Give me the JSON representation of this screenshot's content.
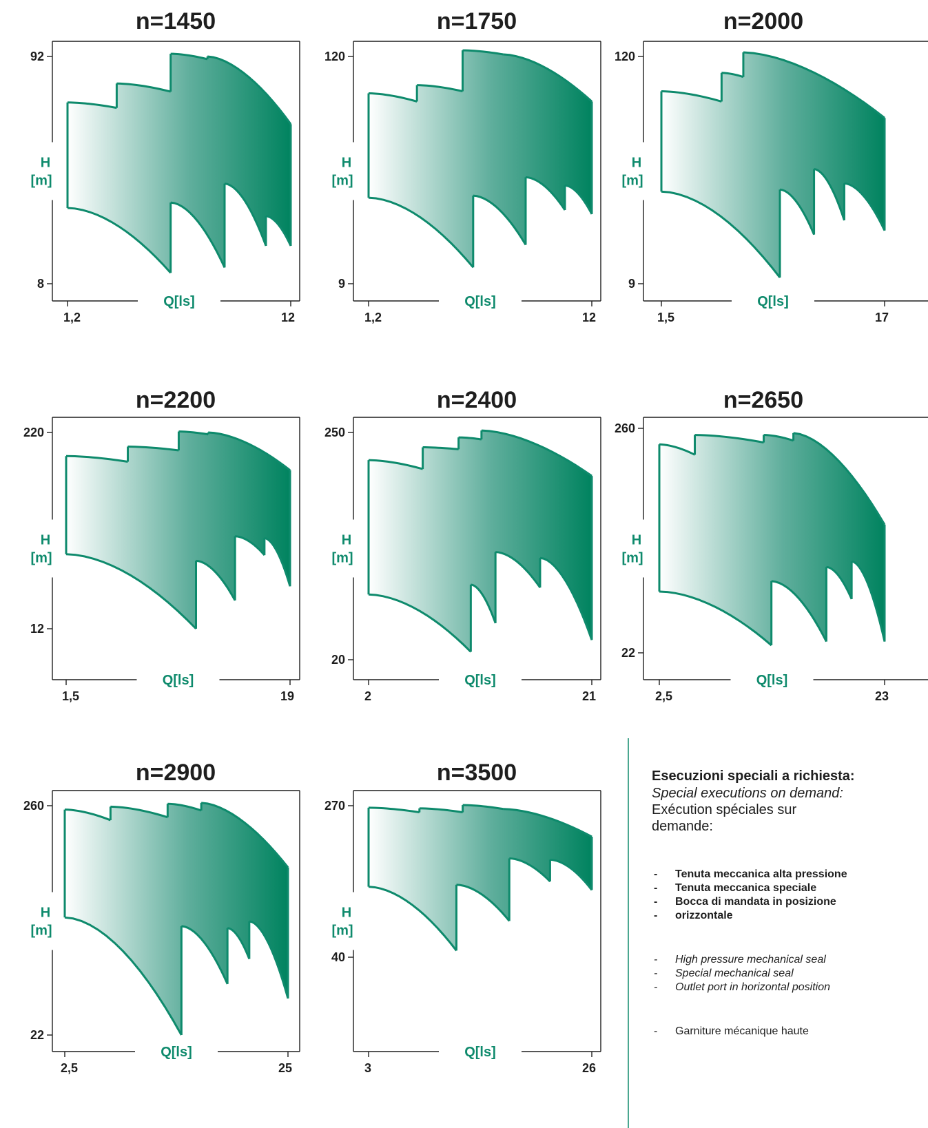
{
  "colors": {
    "curve_stroke": "#0e8a6c",
    "fill_start": "#ffffff",
    "fill_mid": "#5fae9c",
    "fill_end": "#00835f",
    "axis_label": "#0e8a6c",
    "text": "#1e1e1e",
    "divider": "#0e8a6c"
  },
  "chart_data": [
    {
      "type": "area",
      "title": "n=1450",
      "xlabel": "Q[ls]",
      "ylabel": [
        "H",
        "[m]"
      ],
      "x_ticks": [
        "1,2",
        "12"
      ],
      "y_ticks": [
        "92",
        "8"
      ],
      "xlim": [
        1.2,
        12
      ],
      "ylim": [
        8,
        92
      ],
      "grid": false,
      "upper_curves": [
        {
          "q": [
            1.2,
            3.58
          ],
          "h": [
            75,
            73
          ]
        },
        {
          "q": [
            3.58,
            6.19
          ],
          "h": [
            82,
            79
          ]
        },
        {
          "q": [
            6.19,
            7.97
          ],
          "h": [
            93,
            91
          ]
        },
        {
          "q": [
            7.97,
            12
          ],
          "h": [
            92,
            67
          ]
        }
      ],
      "lower_curves": [
        {
          "q": [
            1.2,
            6.19
          ],
          "h": [
            36,
            12
          ]
        },
        {
          "q": [
            6.19,
            8.8
          ],
          "h": [
            38,
            14
          ]
        },
        {
          "q": [
            8.8,
            10.8
          ],
          "h": [
            45,
            22
          ]
        },
        {
          "q": [
            10.8,
            12
          ],
          "h": [
            33,
            22
          ]
        }
      ]
    },
    {
      "type": "area",
      "title": "n=1750",
      "xlabel": "Q[ls]",
      "ylabel": [
        "H",
        "[m]"
      ],
      "x_ticks": [
        "1,2",
        "12"
      ],
      "y_ticks": [
        "120",
        "9"
      ],
      "xlim": [
        1.2,
        12
      ],
      "ylim": [
        9,
        120
      ],
      "grid": false,
      "upper_curves": [
        {
          "q": [
            1.2,
            3.54
          ],
          "h": [
            102,
            98
          ]
        },
        {
          "q": [
            3.54,
            5.75
          ],
          "h": [
            106,
            103
          ]
        },
        {
          "q": [
            5.75,
            7.72
          ],
          "h": [
            123,
            121
          ]
        },
        {
          "q": [
            7.72,
            12
          ],
          "h": [
            121,
            98
          ]
        }
      ],
      "lower_curves": [
        {
          "q": [
            1.2,
            6.26
          ],
          "h": [
            51,
            17
          ]
        },
        {
          "q": [
            6.26,
            8.8
          ],
          "h": [
            52,
            28
          ]
        },
        {
          "q": [
            8.8,
            10.7
          ],
          "h": [
            61,
            45
          ]
        },
        {
          "q": [
            10.7,
            12
          ],
          "h": [
            57,
            43
          ]
        }
      ]
    },
    {
      "type": "area",
      "title": "n=2000",
      "xlabel": "Q[ls]",
      "ylabel": [
        "H",
        "[m]"
      ],
      "x_ticks": [
        "1,5",
        "17"
      ],
      "y_ticks": [
        "120",
        "9"
      ],
      "xlim": [
        1.5,
        17
      ],
      "ylim": [
        9,
        120
      ],
      "grid": false,
      "upper_curves": [
        {
          "q": [
            1.5,
            5.68
          ],
          "h": [
            103,
            98
          ]
        },
        {
          "q": [
            5.68,
            7.19
          ],
          "h": [
            112,
            110
          ]
        },
        {
          "q": [
            7.19,
            17
          ],
          "h": [
            122,
            90
          ]
        }
      ],
      "lower_curves": [
        {
          "q": [
            1.5,
            9.73
          ],
          "h": [
            54,
            12
          ]
        },
        {
          "q": [
            9.73,
            12.1
          ],
          "h": [
            55,
            33
          ]
        },
        {
          "q": [
            12.1,
            14.2
          ],
          "h": [
            65,
            40
          ]
        },
        {
          "q": [
            14.2,
            17
          ],
          "h": [
            58,
            35
          ]
        }
      ]
    },
    {
      "type": "area",
      "title": "n=2200",
      "xlabel": "Q[ls]",
      "ylabel": [
        "H",
        "[m]"
      ],
      "x_ticks": [
        "1,5",
        "19"
      ],
      "y_ticks": [
        "220",
        "12"
      ],
      "xlim": [
        1.5,
        19
      ],
      "ylim": [
        12,
        220
      ],
      "grid": false,
      "upper_curves": [
        {
          "q": [
            1.5,
            6.32
          ],
          "h": [
            195,
            189
          ]
        },
        {
          "q": [
            6.32,
            10.3
          ],
          "h": [
            205,
            201
          ]
        },
        {
          "q": [
            10.3,
            12.6
          ],
          "h": [
            221,
            218
          ]
        },
        {
          "q": [
            12.6,
            19
          ],
          "h": [
            220,
            180
          ]
        }
      ],
      "lower_curves": [
        {
          "q": [
            1.5,
            11.65
          ],
          "h": [
            91,
            12
          ]
        },
        {
          "q": [
            11.65,
            14.7
          ],
          "h": [
            84,
            42
          ]
        },
        {
          "q": [
            14.7,
            17
          ],
          "h": [
            110,
            90
          ]
        },
        {
          "q": [
            17,
            19
          ],
          "h": [
            108,
            57
          ]
        }
      ]
    },
    {
      "type": "area",
      "title": "n=2400",
      "xlabel": "Q[ls]",
      "ylabel": [
        "H",
        "[m]"
      ],
      "x_ticks": [
        "2",
        "21"
      ],
      "y_ticks": [
        "250",
        "20"
      ],
      "xlim": [
        2,
        21
      ],
      "ylim": [
        20,
        250
      ],
      "grid": false,
      "upper_curves": [
        {
          "q": [
            2,
            6.61
          ],
          "h": [
            222,
            213
          ]
        },
        {
          "q": [
            6.61,
            9.66
          ],
          "h": [
            235,
            233
          ]
        },
        {
          "q": [
            9.66,
            11.61
          ],
          "h": [
            245,
            243
          ]
        },
        {
          "q": [
            11.61,
            21
          ],
          "h": [
            252,
            206
          ]
        }
      ],
      "lower_curves": [
        {
          "q": [
            2,
            10.7
          ],
          "h": [
            86,
            28
          ]
        },
        {
          "q": [
            10.7,
            12.8
          ],
          "h": [
            96,
            57
          ]
        },
        {
          "q": [
            12.8,
            16.6
          ],
          "h": [
            129,
            93
          ]
        },
        {
          "q": [
            16.6,
            21
          ],
          "h": [
            123,
            40
          ]
        }
      ]
    },
    {
      "type": "area",
      "title": "n=2650",
      "xlabel": "Q[ls]",
      "ylabel": [
        "H",
        "[m]"
      ],
      "x_ticks": [
        "2,5",
        "23"
      ],
      "y_ticks": [
        "260",
        "22"
      ],
      "xlim": [
        2.5,
        23
      ],
      "ylim": [
        22,
        260
      ],
      "grid": false,
      "upper_curves": [
        {
          "q": [
            2.5,
            5.73
          ],
          "h": [
            243,
            232
          ]
        },
        {
          "q": [
            5.73,
            12
          ],
          "h": [
            253,
            245
          ]
        },
        {
          "q": [
            12,
            14.7
          ],
          "h": [
            253,
            247
          ]
        },
        {
          "q": [
            14.7,
            23
          ],
          "h": [
            255,
            158
          ]
        }
      ],
      "lower_curves": [
        {
          "q": [
            2.5,
            12.7
          ],
          "h": [
            87,
            30
          ]
        },
        {
          "q": [
            12.7,
            17.7
          ],
          "h": [
            98,
            34
          ]
        },
        {
          "q": [
            17.7,
            20
          ],
          "h": [
            113,
            79
          ]
        },
        {
          "q": [
            20,
            23
          ],
          "h": [
            119,
            34
          ]
        }
      ]
    },
    {
      "type": "area",
      "title": "n=2900",
      "xlabel": "Q[ls]",
      "ylabel": [
        "H",
        "[m]"
      ],
      "x_ticks": [
        "2,5",
        "25"
      ],
      "y_ticks": [
        "260",
        "22"
      ],
      "xlim": [
        2.5,
        25
      ],
      "ylim": [
        22,
        260
      ],
      "grid": false,
      "upper_curves": [
        {
          "q": [
            2.5,
            7.11
          ],
          "h": [
            256,
            245
          ]
        },
        {
          "q": [
            7.11,
            12.87
          ],
          "h": [
            259,
            248
          ]
        },
        {
          "q": [
            12.87,
            16.26
          ],
          "h": [
            262,
            255
          ]
        },
        {
          "q": [
            16.26,
            25
          ],
          "h": [
            263,
            196
          ]
        }
      ],
      "lower_curves": [
        {
          "q": [
            2.5,
            14.26
          ],
          "h": [
            144,
            22
          ]
        },
        {
          "q": [
            14.26,
            18.9
          ],
          "h": [
            135,
            75
          ]
        },
        {
          "q": [
            18.9,
            21.1
          ],
          "h": [
            133,
            101
          ]
        },
        {
          "q": [
            21.1,
            25
          ],
          "h": [
            140,
            60
          ]
        }
      ]
    },
    {
      "type": "area",
      "title": "n=3500",
      "xlabel": "Q[ls]",
      "ylabel": [
        "H",
        "[m]"
      ],
      "x_ticks": [
        "3",
        "26"
      ],
      "y_ticks": [
        "270",
        "40"
      ],
      "xlim": [
        3,
        26
      ],
      "ylim": [
        40,
        270
      ],
      "grid": false,
      "upper_curves": [
        {
          "q": [
            3,
            8.24
          ],
          "h": [
            267,
            260
          ]
        },
        {
          "q": [
            8.24,
            12.7
          ],
          "h": [
            266,
            260
          ]
        },
        {
          "q": [
            12.7,
            16.9
          ],
          "h": [
            271,
            265
          ]
        },
        {
          "q": [
            16.9,
            26
          ],
          "h": [
            265,
            223
          ]
        }
      ],
      "lower_curves": [
        {
          "q": [
            3,
            12.05
          ],
          "h": [
            147,
            50
          ]
        },
        {
          "q": [
            12.05,
            17.5
          ],
          "h": [
            150,
            95
          ]
        },
        {
          "q": [
            17.5,
            21.7
          ],
          "h": [
            190,
            155
          ]
        },
        {
          "q": [
            21.7,
            26
          ],
          "h": [
            188,
            142
          ]
        }
      ]
    }
  ],
  "notes": {
    "title_it": "Esecuzioni speciali a richiesta:",
    "title_en": "Special executions on demand:",
    "title_fr": "Exécution spéciales sur demande:",
    "items_it": [
      "Tenuta meccanica alta pressione",
      "Tenuta meccanica speciale",
      "Bocca di mandata in posizione",
      "orizzontale"
    ],
    "items_en": [
      "High pressure mechanical seal",
      "Special mechanical seal",
      "Outlet port in horizontal position"
    ],
    "items_fr": [
      "Garniture mécanique haute"
    ]
  }
}
